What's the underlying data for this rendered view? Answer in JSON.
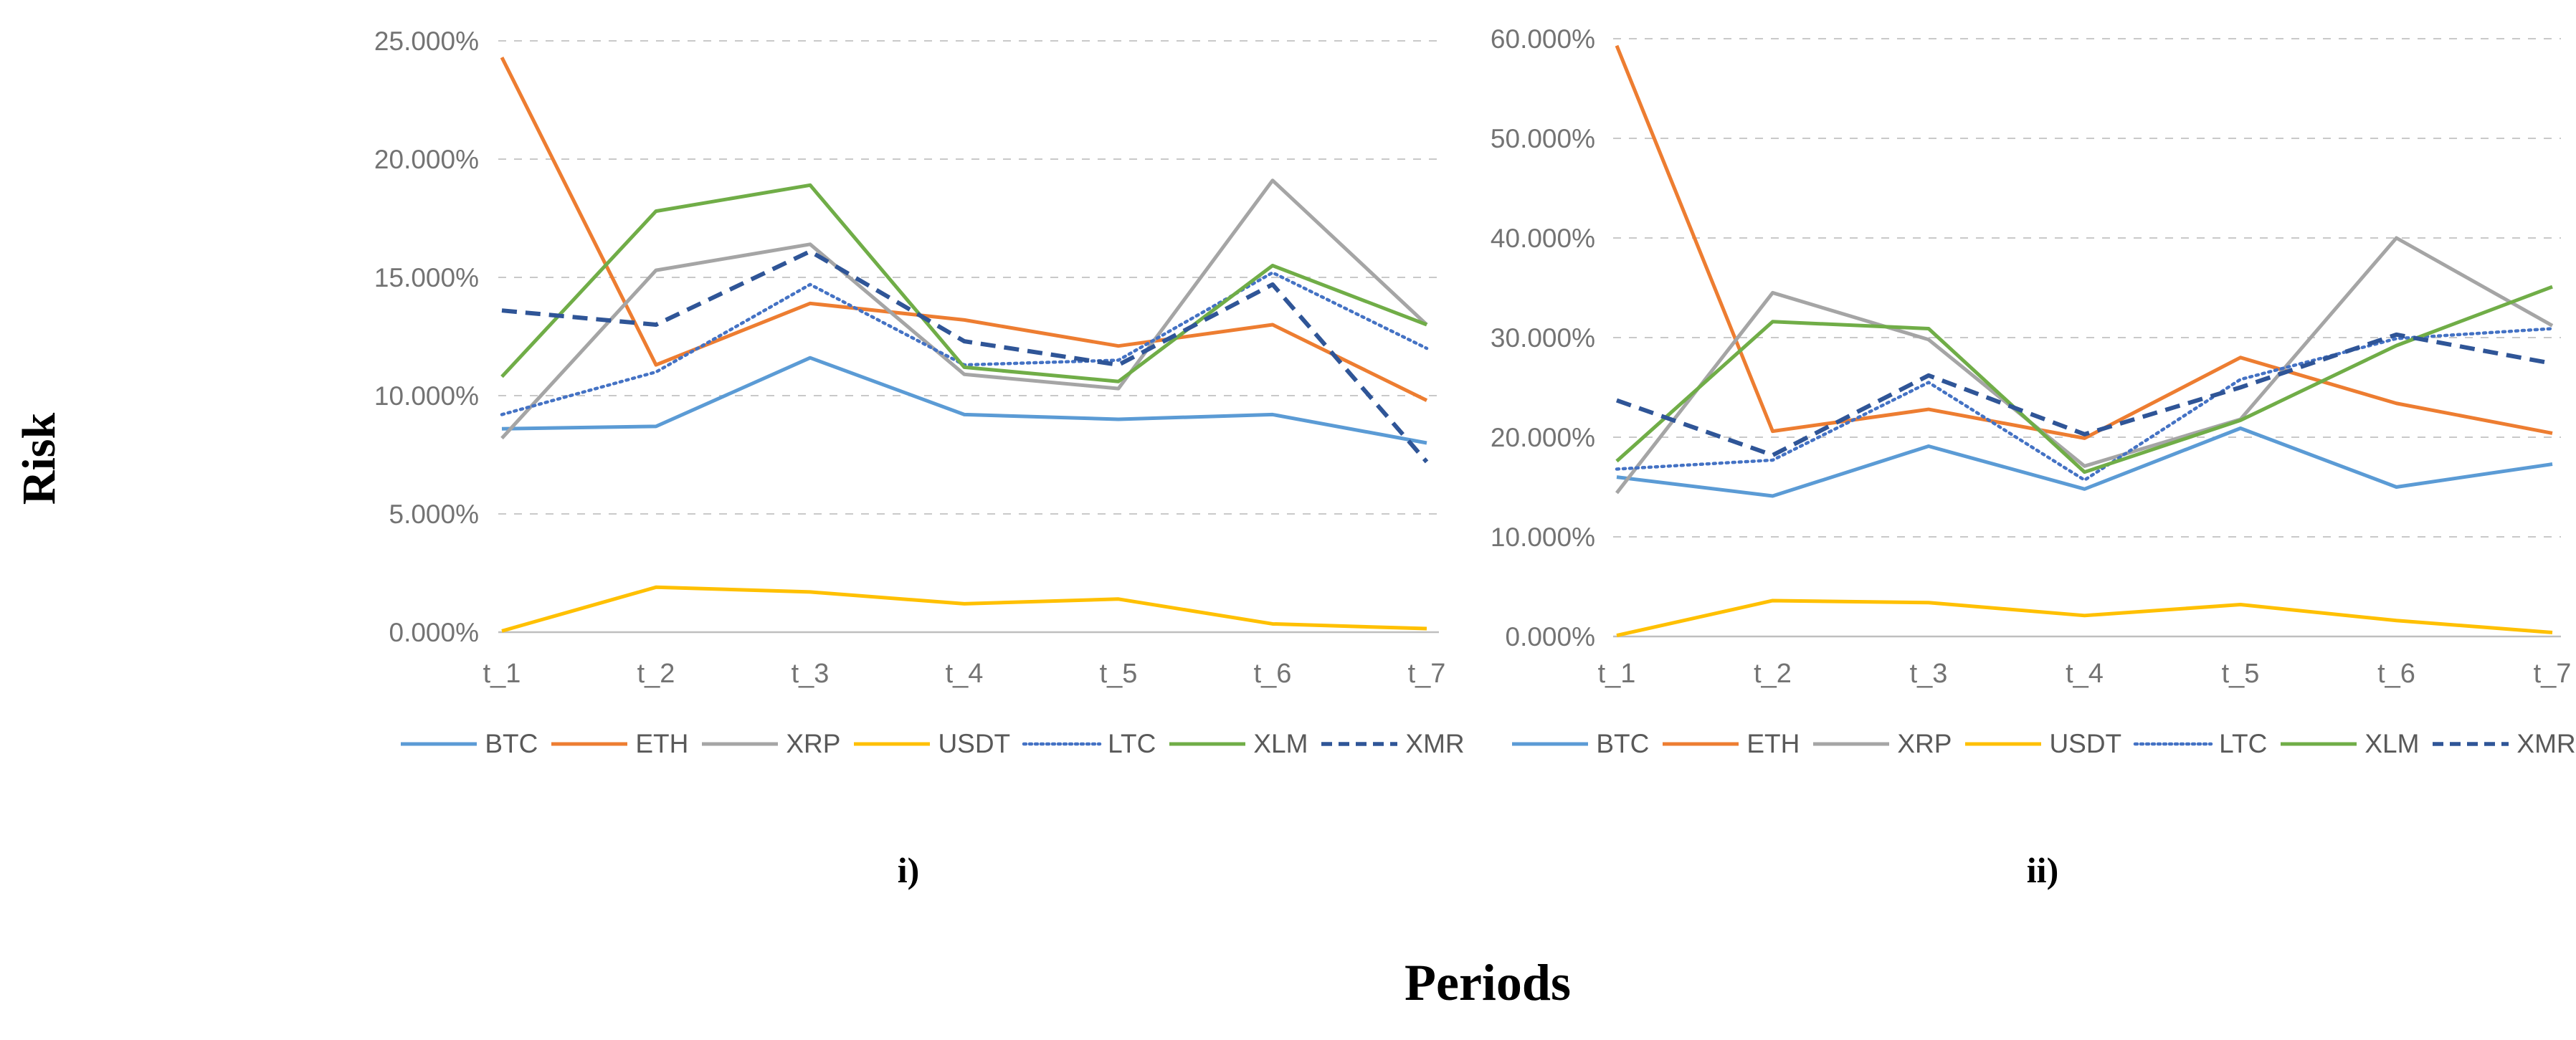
{
  "axis_titles": {
    "y": "Risk",
    "x": "Periods"
  },
  "colors": {
    "BTC": "#5B9BD5",
    "ETH": "#ED7D31",
    "XRP": "#A5A5A5",
    "USDT": "#FFC000",
    "LTC": "#4472C4",
    "XLM": "#70AD47",
    "XMR": "#2F5597"
  },
  "chart_data": [
    {
      "id": "i",
      "type": "line",
      "caption": "i)",
      "title": "",
      "xlabel": "Periods",
      "ylabel": "Risk",
      "categories": [
        "t_1",
        "t_2",
        "t_3",
        "t_4",
        "t_5",
        "t_6",
        "t_7"
      ],
      "ylim": [
        0,
        25
      ],
      "ytick_step": 5,
      "ytick_labels": [
        "0.000%",
        "5.000%",
        "10.000%",
        "15.000%",
        "20.000%",
        "25.000%"
      ],
      "grid": true,
      "legend_position": "bottom",
      "legend": [
        "BTC",
        "ETH",
        "XRP",
        "USDT",
        "LTC",
        "XLM",
        "XMR"
      ],
      "series": [
        {
          "name": "BTC",
          "style": "solid",
          "values": [
            8.6,
            8.7,
            11.6,
            9.2,
            9.0,
            9.2,
            8.0
          ]
        },
        {
          "name": "ETH",
          "style": "solid",
          "values": [
            24.3,
            11.3,
            13.9,
            13.2,
            12.1,
            13.0,
            9.8
          ]
        },
        {
          "name": "XRP",
          "style": "solid",
          "values": [
            8.2,
            15.3,
            16.4,
            10.9,
            10.3,
            19.1,
            13.0
          ]
        },
        {
          "name": "USDT",
          "style": "solid",
          "values": [
            0.05,
            1.9,
            1.7,
            1.2,
            1.4,
            0.35,
            0.15
          ]
        },
        {
          "name": "LTC",
          "style": "dotted",
          "values": [
            9.2,
            11.0,
            14.7,
            11.3,
            11.5,
            15.2,
            12.0
          ]
        },
        {
          "name": "XLM",
          "style": "solid",
          "values": [
            10.8,
            17.8,
            18.9,
            11.2,
            10.6,
            15.5,
            13.0
          ]
        },
        {
          "name": "XMR",
          "style": "dashed",
          "values": [
            13.6,
            13.0,
            16.1,
            12.3,
            11.3,
            14.7,
            7.2
          ]
        }
      ]
    },
    {
      "id": "ii",
      "type": "line",
      "caption": "ii)",
      "title": "",
      "xlabel": "Periods",
      "ylabel": "Risk",
      "categories": [
        "t_1",
        "t_2",
        "t_3",
        "t_4",
        "t_5",
        "t_6",
        "t_7"
      ],
      "ylim": [
        0,
        60
      ],
      "ytick_step": 10,
      "ytick_labels": [
        "0.000%",
        "10.000%",
        "20.000%",
        "30.000%",
        "40.000%",
        "50.000%",
        "60.000%"
      ],
      "grid": true,
      "legend_position": "bottom",
      "legend": [
        "BTC",
        "ETH",
        "XRP",
        "USDT",
        "LTC",
        "XLM",
        "XMR"
      ],
      "series": [
        {
          "name": "BTC",
          "style": "solid",
          "values": [
            16.0,
            14.1,
            19.1,
            14.8,
            20.9,
            15.0,
            17.3
          ]
        },
        {
          "name": "ETH",
          "style": "solid",
          "values": [
            59.3,
            20.6,
            22.8,
            19.9,
            28.0,
            23.4,
            20.4
          ]
        },
        {
          "name": "XRP",
          "style": "solid",
          "values": [
            14.4,
            34.5,
            29.8,
            17.1,
            21.8,
            40.0,
            31.2
          ]
        },
        {
          "name": "USDT",
          "style": "solid",
          "values": [
            0.1,
            3.6,
            3.4,
            2.1,
            3.2,
            1.6,
            0.4
          ]
        },
        {
          "name": "LTC",
          "style": "dotted",
          "values": [
            16.8,
            17.7,
            25.5,
            15.7,
            25.8,
            29.9,
            30.9
          ]
        },
        {
          "name": "XLM",
          "style": "solid",
          "values": [
            17.6,
            31.6,
            30.9,
            16.5,
            21.7,
            29.2,
            35.1
          ]
        },
        {
          "name": "XMR",
          "style": "dashed",
          "values": [
            23.7,
            18.2,
            26.2,
            20.3,
            25.0,
            30.3,
            27.4
          ]
        }
      ]
    }
  ]
}
